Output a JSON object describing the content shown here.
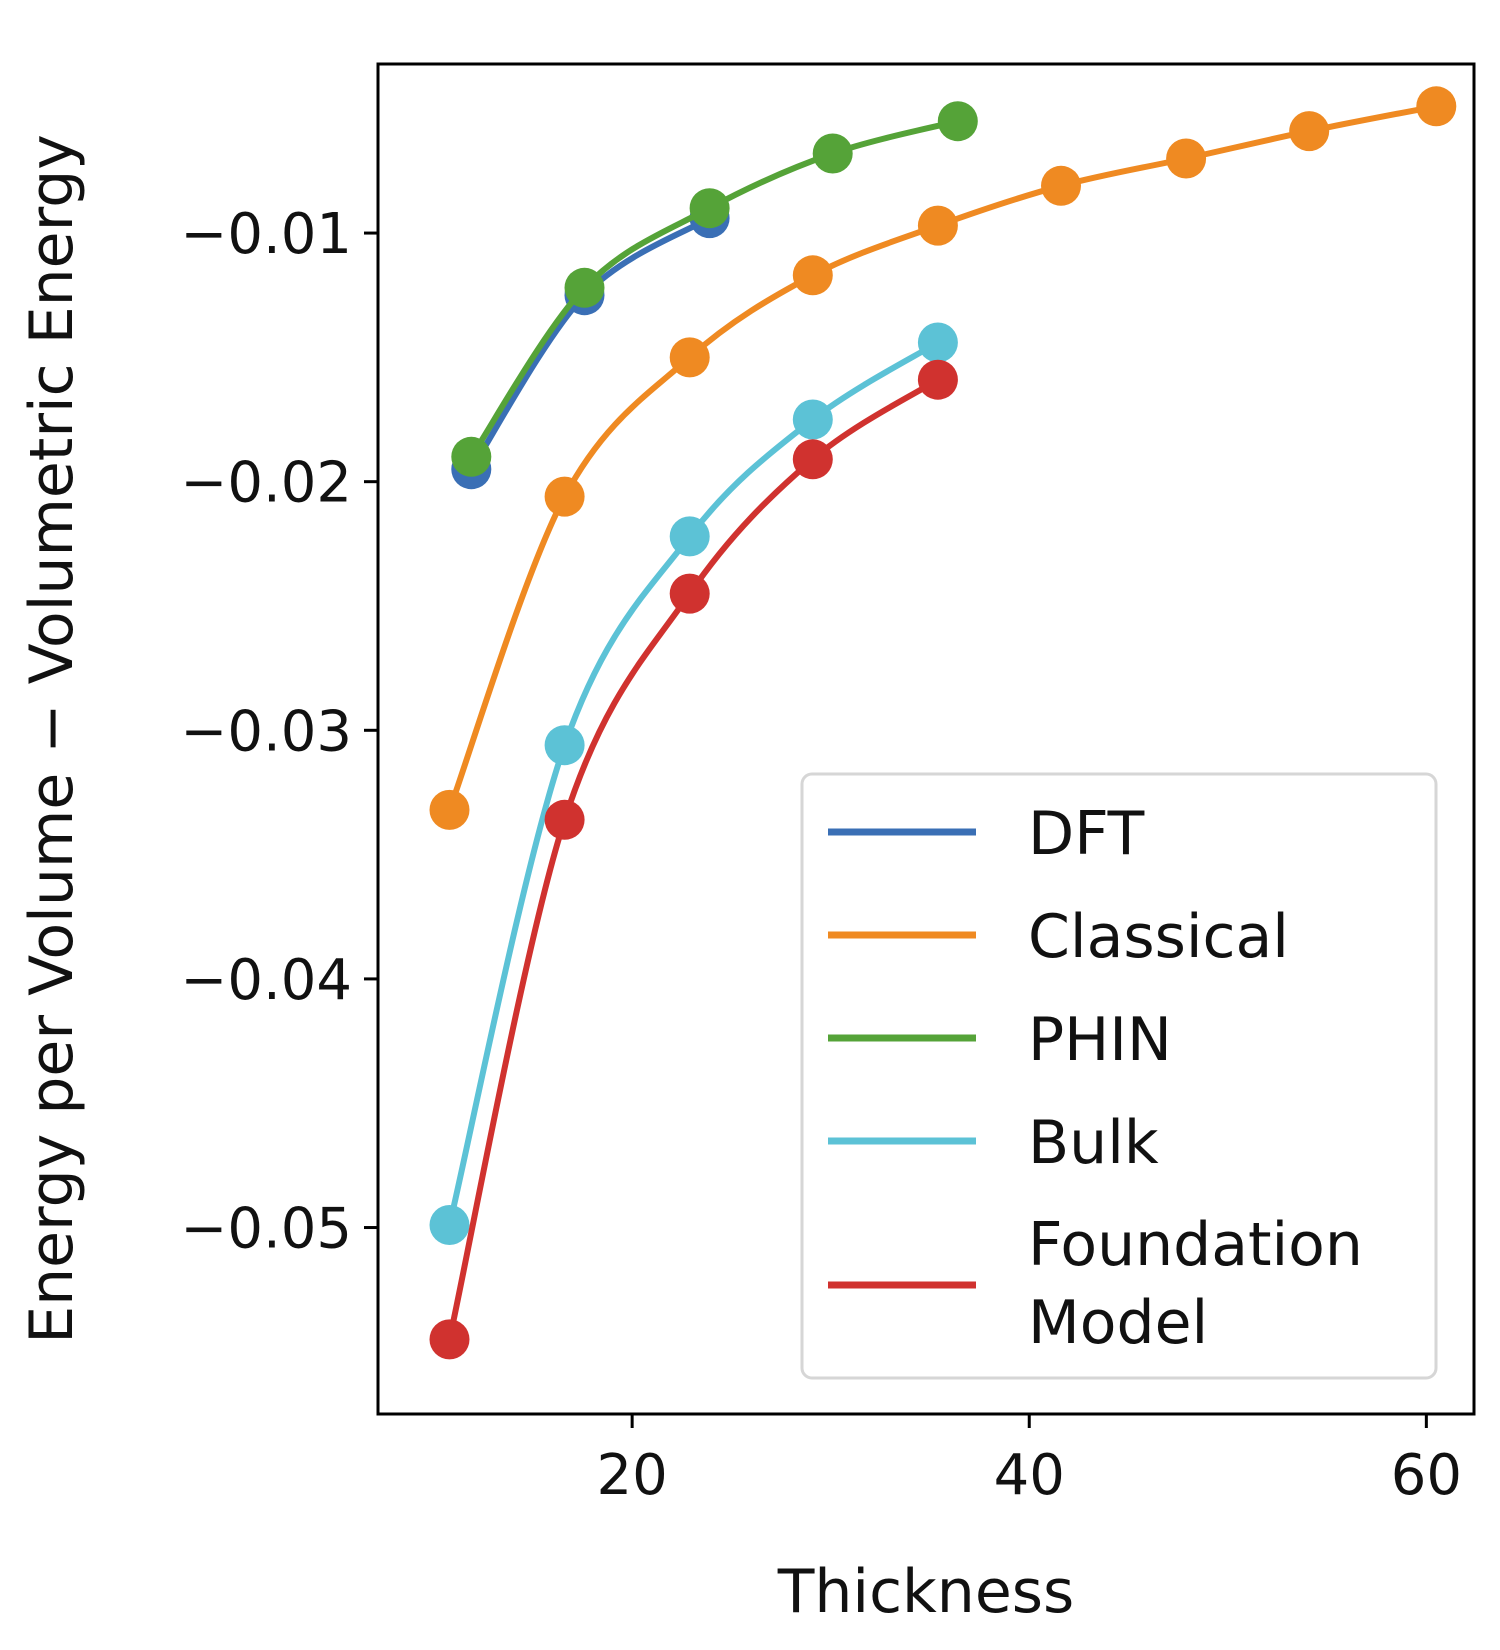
{
  "chart_data": {
    "type": "line",
    "title": "",
    "xlabel": "Thickness",
    "ylabel": "Energy per Volume − Volumetric Energy",
    "xlim": [
      7.2,
      62.4
    ],
    "ylim": [
      -0.0575,
      -0.0032
    ],
    "xticks": [
      20,
      40,
      60
    ],
    "xtick_labels": [
      "20",
      "40",
      "60"
    ],
    "yticks": [
      -0.01,
      -0.02,
      -0.03,
      -0.04,
      -0.05
    ],
    "ytick_labels": [
      "−0.01",
      "−0.02",
      "−0.03",
      "−0.04",
      "−0.05"
    ],
    "grid": false,
    "legend_position": "bottom-right",
    "series": [
      {
        "name": "DFT",
        "color": "#3a6fb5",
        "x": [
          11.9,
          17.6,
          23.9
        ],
        "y": [
          -0.0195,
          -0.0125,
          -0.0094
        ]
      },
      {
        "name": "Classical",
        "color": "#ef8a22",
        "x": [
          10.8,
          16.6,
          22.9,
          29.1,
          35.4,
          41.6,
          47.9,
          54.1,
          60.5
        ],
        "y": [
          -0.0332,
          -0.0206,
          -0.015,
          -0.0117,
          -0.0097,
          -0.0081,
          -0.007,
          -0.0059,
          -0.0049
        ]
      },
      {
        "name": "PHIN",
        "color": "#55a338",
        "x": [
          11.9,
          17.6,
          23.9,
          30.1,
          36.4
        ],
        "y": [
          -0.019,
          -0.0122,
          -0.009,
          -0.0068,
          -0.0055
        ]
      },
      {
        "name": "Bulk",
        "color": "#5cc2d6",
        "x": [
          10.8,
          16.6,
          22.9,
          29.1,
          35.4
        ],
        "y": [
          -0.0499,
          -0.0306,
          -0.0222,
          -0.0175,
          -0.0144
        ]
      },
      {
        "name": "Foundation\nModel",
        "color": "#d0322f",
        "x": [
          10.8,
          16.6,
          22.9,
          29.1,
          35.4
        ],
        "y": [
          -0.0545,
          -0.0336,
          -0.0245,
          -0.0191,
          -0.0159
        ]
      }
    ]
  }
}
